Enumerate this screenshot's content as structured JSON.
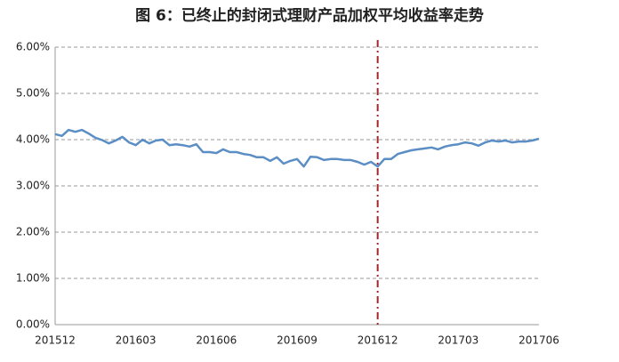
{
  "chart_data": {
    "type": "line",
    "title": "图 6：已终止的封闭式理财产品加权平均收益率走势",
    "categories": [
      "201512",
      null,
      null,
      null,
      null,
      null,
      null,
      null,
      null,
      null,
      null,
      null,
      "201603",
      null,
      null,
      null,
      null,
      null,
      null,
      null,
      null,
      null,
      null,
      null,
      "201606",
      null,
      null,
      null,
      null,
      null,
      null,
      null,
      null,
      null,
      null,
      null,
      "201609",
      null,
      null,
      null,
      null,
      null,
      null,
      null,
      null,
      null,
      null,
      null,
      "201612",
      null,
      null,
      null,
      null,
      null,
      null,
      null,
      null,
      null,
      null,
      null,
      "201703",
      null,
      null,
      null,
      null,
      null,
      null,
      null,
      null,
      null,
      null,
      null,
      "201706"
    ],
    "series": [
      {
        "name": "加权平均收益率",
        "color": "#5b8ec4",
        "values": [
          4.12,
          4.08,
          4.21,
          4.17,
          4.21,
          4.13,
          4.04,
          3.99,
          3.92,
          3.98,
          4.06,
          3.94,
          3.88,
          4.0,
          3.92,
          3.98,
          4.0,
          3.88,
          3.9,
          3.88,
          3.85,
          3.9,
          3.73,
          3.73,
          3.71,
          3.79,
          3.73,
          3.73,
          3.69,
          3.67,
          3.62,
          3.62,
          3.54,
          3.62,
          3.48,
          3.54,
          3.58,
          3.42,
          3.63,
          3.62,
          3.56,
          3.58,
          3.58,
          3.56,
          3.56,
          3.52,
          3.46,
          3.52,
          3.42,
          3.58,
          3.58,
          3.69,
          3.73,
          3.77,
          3.79,
          3.81,
          3.83,
          3.79,
          3.85,
          3.88,
          3.9,
          3.94,
          3.92,
          3.87,
          3.94,
          3.98,
          3.96,
          3.98,
          3.94,
          3.96,
          3.96,
          3.98,
          4.02
        ]
      }
    ],
    "ylim": [
      0,
      6
    ],
    "yticks": [
      {
        "value": 0,
        "label": "0.00%"
      },
      {
        "value": 1,
        "label": "1.00%"
      },
      {
        "value": 2,
        "label": "2.00%"
      },
      {
        "value": 3,
        "label": "3.00%"
      },
      {
        "value": 4,
        "label": "4.00%"
      },
      {
        "value": 5,
        "label": "5.00%"
      },
      {
        "value": 6,
        "label": "6.00%"
      }
    ],
    "grid": true,
    "reference_line": {
      "x": "201612",
      "color": "#a0282a"
    }
  }
}
